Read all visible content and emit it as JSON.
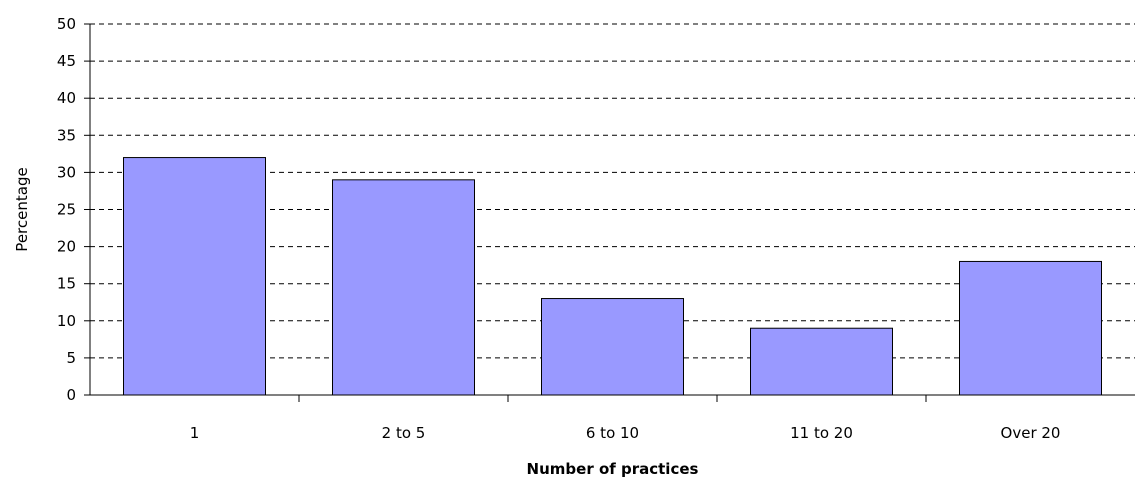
{
  "chart_data": {
    "type": "bar",
    "title": "",
    "xlabel": "Number of practices",
    "ylabel": "Percentage",
    "categories": [
      "1",
      "2 to 5",
      "6 to 10",
      "11 to 20",
      "Over 20"
    ],
    "values": [
      32,
      29,
      13,
      9,
      18
    ],
    "ylim": [
      0,
      50
    ],
    "yticks": [
      "0",
      "5",
      "10",
      "15",
      "20",
      "25",
      "30",
      "35",
      "40",
      "45",
      "50"
    ],
    "grid": true,
    "bar_color": "#9999FF",
    "legend": "none"
  }
}
